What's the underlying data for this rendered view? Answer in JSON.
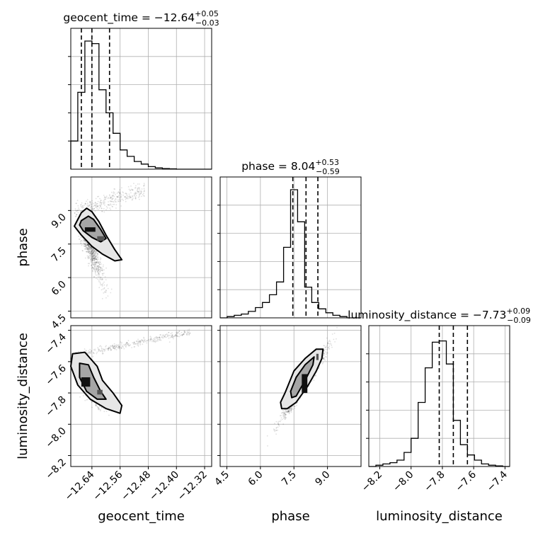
{
  "chart_data": {
    "type": "corner",
    "parameters": [
      {
        "name": "geocent_time",
        "range": [
          -12.7,
          -12.3
        ],
        "ticks": [
          "-12.64",
          "-12.56",
          "-12.48",
          "-12.40",
          "-12.32"
        ],
        "tick_values": [
          -12.64,
          -12.56,
          -12.48,
          -12.4,
          -12.32
        ]
      },
      {
        "name": "phase",
        "range": [
          4.2,
          10.5
        ],
        "ticks": [
          "4.5",
          "6.0",
          "7.5",
          "9.0"
        ],
        "tick_values": [
          4.5,
          6.0,
          7.5,
          9.0
        ]
      },
      {
        "name": "luminosity_distance",
        "range": [
          -8.27,
          -7.37
        ],
        "ticks": [
          "-8.2",
          "-8.0",
          "-7.8",
          "-7.6",
          "-7.4"
        ],
        "tick_values": [
          -8.2,
          -8.0,
          -7.8,
          -7.6,
          -7.4
        ]
      }
    ],
    "titles": [
      {
        "param": "geocent_time",
        "text": "geocent_time = −12.64",
        "plus": "+0.05",
        "minus": "−0.03"
      },
      {
        "param": "phase",
        "text": "phase = 8.04",
        "plus": "+0.53",
        "minus": "−0.59"
      },
      {
        "param": "luminosity_distance",
        "text": "luminosity_distance = −7.73",
        "plus": "+0.09",
        "minus": "−0.09"
      }
    ],
    "quantiles": {
      "geocent_time": [
        -12.67,
        -12.64,
        -12.59
      ],
      "phase": [
        7.45,
        8.04,
        8.57
      ],
      "luminosity_distance": [
        -7.82,
        -7.73,
        -7.64
      ]
    },
    "histograms": {
      "geocent_time": {
        "edges_start": -12.7,
        "bin_width": 0.02,
        "counts": [
          0.22,
          0.6,
          1.0,
          0.98,
          0.62,
          0.44,
          0.28,
          0.15,
          0.1,
          0.06,
          0.04,
          0.02,
          0.01,
          0.005,
          0.003,
          0,
          0,
          0,
          0,
          0
        ]
      },
      "phase": {
        "edges_start": 4.2,
        "bin_width": 0.315,
        "counts": [
          0,
          0.01,
          0.02,
          0.03,
          0.05,
          0.08,
          0.12,
          0.18,
          0.28,
          0.55,
          1.0,
          0.75,
          0.24,
          0.12,
          0.07,
          0.04,
          0.02,
          0.01,
          0,
          0
        ]
      },
      "luminosity_distance": {
        "edges_start": -8.27,
        "bin_width": 0.045,
        "counts": [
          0,
          0.01,
          0.02,
          0.03,
          0.05,
          0.11,
          0.22,
          0.5,
          0.77,
          0.97,
          0.98,
          0.8,
          0.36,
          0.17,
          0.09,
          0.05,
          0.02,
          0.01,
          0.005,
          0
        ]
      }
    },
    "contours": {
      "phase_vs_geocent_time": {
        "outer": [
          [
            -12.68,
            8.6
          ],
          [
            -12.67,
            8.9
          ],
          [
            -12.655,
            9.1
          ],
          [
            -12.64,
            8.95
          ],
          [
            -12.62,
            8.5
          ],
          [
            -12.6,
            7.9
          ],
          [
            -12.575,
            7.25
          ],
          [
            -12.555,
            6.8
          ],
          [
            -12.575,
            6.75
          ],
          [
            -12.61,
            7.05
          ],
          [
            -12.64,
            7.4
          ],
          [
            -12.67,
            7.9
          ],
          [
            -12.69,
            8.3
          ]
        ],
        "inner": [
          [
            -12.67,
            8.55
          ],
          [
            -12.65,
            8.75
          ],
          [
            -12.635,
            8.6
          ],
          [
            -12.615,
            8.15
          ],
          [
            -12.6,
            7.75
          ],
          [
            -12.615,
            7.6
          ],
          [
            -12.64,
            7.8
          ],
          [
            -12.665,
            8.1
          ],
          [
            -12.675,
            8.35
          ]
        ],
        "core": [
          [
            -12.66,
            8.25
          ],
          [
            -12.63,
            8.25
          ],
          [
            -12.63,
            8.05
          ],
          [
            -12.66,
            8.05
          ]
        ],
        "core2": [
          [
            -12.625,
            7.85
          ],
          [
            -12.605,
            7.85
          ],
          [
            -12.605,
            7.65
          ],
          [
            -12.625,
            7.65
          ]
        ]
      },
      "luminosity_distance_vs_geocent_time": {
        "outer": [
          [
            -12.695,
            -7.55
          ],
          [
            -12.66,
            -7.54
          ],
          [
            -12.625,
            -7.63
          ],
          [
            -12.61,
            -7.72
          ],
          [
            -12.58,
            -7.8
          ],
          [
            -12.555,
            -7.88
          ],
          [
            -12.56,
            -7.93
          ],
          [
            -12.6,
            -7.9
          ],
          [
            -12.645,
            -7.84
          ],
          [
            -12.68,
            -7.75
          ],
          [
            -12.7,
            -7.63
          ]
        ],
        "inner": [
          [
            -12.675,
            -7.61
          ],
          [
            -12.65,
            -7.62
          ],
          [
            -12.635,
            -7.7
          ],
          [
            -12.615,
            -7.79
          ],
          [
            -12.6,
            -7.84
          ],
          [
            -12.625,
            -7.84
          ],
          [
            -12.655,
            -7.79
          ],
          [
            -12.675,
            -7.7
          ]
        ],
        "core": [
          [
            -12.67,
            -7.7
          ],
          [
            -12.645,
            -7.7
          ],
          [
            -12.645,
            -7.76
          ],
          [
            -12.67,
            -7.76
          ]
        ],
        "core2": [
          [
            -12.625,
            -7.78
          ],
          [
            -12.61,
            -7.78
          ],
          [
            -12.61,
            -7.81
          ],
          [
            -12.625,
            -7.81
          ]
        ]
      },
      "luminosity_distance_vs_phase": {
        "outer": [
          [
            6.9,
            -7.86
          ],
          [
            7.1,
            -7.8
          ],
          [
            7.5,
            -7.66
          ],
          [
            8.0,
            -7.58
          ],
          [
            8.5,
            -7.52
          ],
          [
            8.8,
            -7.52
          ],
          [
            8.75,
            -7.58
          ],
          [
            8.5,
            -7.66
          ],
          [
            8.1,
            -7.76
          ],
          [
            7.6,
            -7.86
          ],
          [
            7.2,
            -7.9
          ],
          [
            6.95,
            -7.9
          ]
        ],
        "inner": [
          [
            7.35,
            -7.79
          ],
          [
            7.6,
            -7.7
          ],
          [
            8.0,
            -7.62
          ],
          [
            8.4,
            -7.57
          ],
          [
            8.35,
            -7.62
          ],
          [
            8.0,
            -7.72
          ],
          [
            7.6,
            -7.82
          ],
          [
            7.4,
            -7.83
          ]
        ],
        "core": [
          [
            7.85,
            -7.68
          ],
          [
            8.1,
            -7.68
          ],
          [
            8.1,
            -7.8
          ],
          [
            7.85,
            -7.8
          ]
        ],
        "core2": [
          [
            8.5,
            -7.55
          ],
          [
            8.6,
            -7.55
          ],
          [
            8.6,
            -7.59
          ],
          [
            8.5,
            -7.59
          ]
        ]
      }
    },
    "axis_labels": {
      "geocent_time": "geocent_time",
      "phase": "phase",
      "luminosity_distance": "luminosity_distance"
    },
    "grid": true
  }
}
